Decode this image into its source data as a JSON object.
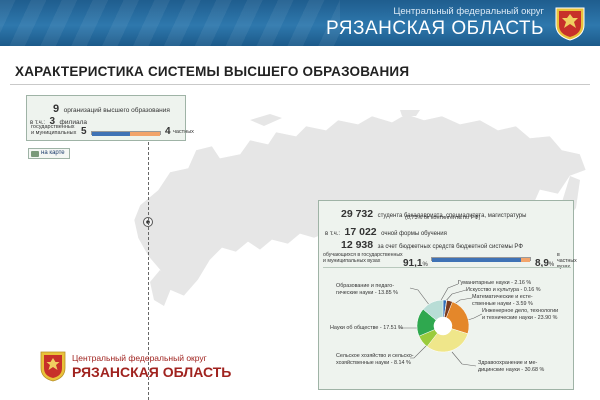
{
  "header": {
    "district": "Центральный федеральный округ",
    "region": "РЯЗАНСКАЯ ОБЛАСТЬ"
  },
  "title": "ХАРАКТЕРИСТИКА СИСТЕМЫ ВЫСШЕГО ОБРАЗОВАНИЯ",
  "orgs": {
    "total": "9",
    "total_label": "организаций высшего образования",
    "branches_prefix": "в т.ч.:",
    "branches": "3",
    "branches_label": "филиала",
    "state_label_1": "государственных",
    "state_label_2": "и муниципальных",
    "state_count": "5",
    "state_value": 5,
    "private_count": "4",
    "private_value": 4,
    "private_label": "частных"
  },
  "map_link": "на карте",
  "students": {
    "total": "29 732",
    "total_label": "студента бакалавриата, специалитета, магистратуры",
    "share_label": "(0,73% от контингента по РФ)",
    "fulltime_prefix": "в т.ч.:",
    "fulltime": "17 022",
    "fulltime_label": "очной формы обучения",
    "budget": "12 938",
    "budget_label": "за счет бюджетных средств бюджетной системы РФ",
    "state_label_1": "обучающихся в государственных",
    "state_label_2": "и муниципальных вузах",
    "state_pct": "91,1",
    "state_value": 91.1,
    "pct_sign": "%",
    "private_pct": "8,9",
    "private_value": 8.9,
    "private_label_1": "в частных",
    "private_label_2": "вузах"
  },
  "chart_data": {
    "type": "pie",
    "slices": [
      {
        "label": "Гуманитарные науки - 2.16 %",
        "value": 2.16,
        "color": "#2f6fb8"
      },
      {
        "label": "Искусство и культура - 0.16 %",
        "value": 0.16,
        "color": "#e8d84a"
      },
      {
        "label": "Математические и естественные науки - 3.59 %",
        "value": 3.59,
        "color": "#7a3b1e"
      },
      {
        "label": "Инженерное дело, технологии и технические науки - 23.90 %",
        "value": 23.9,
        "color": "#e4872a"
      },
      {
        "label": "Здравоохранение и медицинские науки - 30.68 %",
        "value": 30.68,
        "color": "#efe68a"
      },
      {
        "label": "Сельское хозяйство и сельскохозяйственные науки - 8.14 %",
        "value": 8.14,
        "color": "#9acb3c"
      },
      {
        "label": "Науки об обществе - 17.51 %",
        "value": 17.51,
        "color": "#2fa84f"
      },
      {
        "label": "Образование и педагогические науки - 13.85 %",
        "value": 13.85,
        "color": "#b8ddd6"
      }
    ]
  },
  "pie_labels": {
    "humanities": "Гуманитарные науки - 2.16 %",
    "arts": "Искусство и культура - 0.16 %",
    "math_1": "Математические и есте-",
    "math_2": "ственные науки - 3.59 %",
    "eng_1": "Инженерное дело, технологии",
    "eng_2": "и технические науки - 23.90 %",
    "health_1": "Здравоохранение и ме-",
    "health_2": "дицинские науки - 30.68 %",
    "agri_1": "Сельское хозяйство и сельско-",
    "agri_2": "хозяйственные науки - 8.14 %",
    "social": "Науки об обществе - 17.51 %",
    "edu_1": "Образование и педаго-",
    "edu_2": "гические науки - 13.85 %"
  },
  "footer": {
    "district": "Центральный федеральный округ",
    "region": "РЯЗАНСКАЯ ОБЛАСТЬ"
  },
  "colors": {
    "header_blue": "#2e78ad",
    "bar_blue": "#3f72b5",
    "bar_orange": "#f2a46b",
    "footer_red": "#a0231f",
    "map_gray": "#e6e6e6"
  }
}
